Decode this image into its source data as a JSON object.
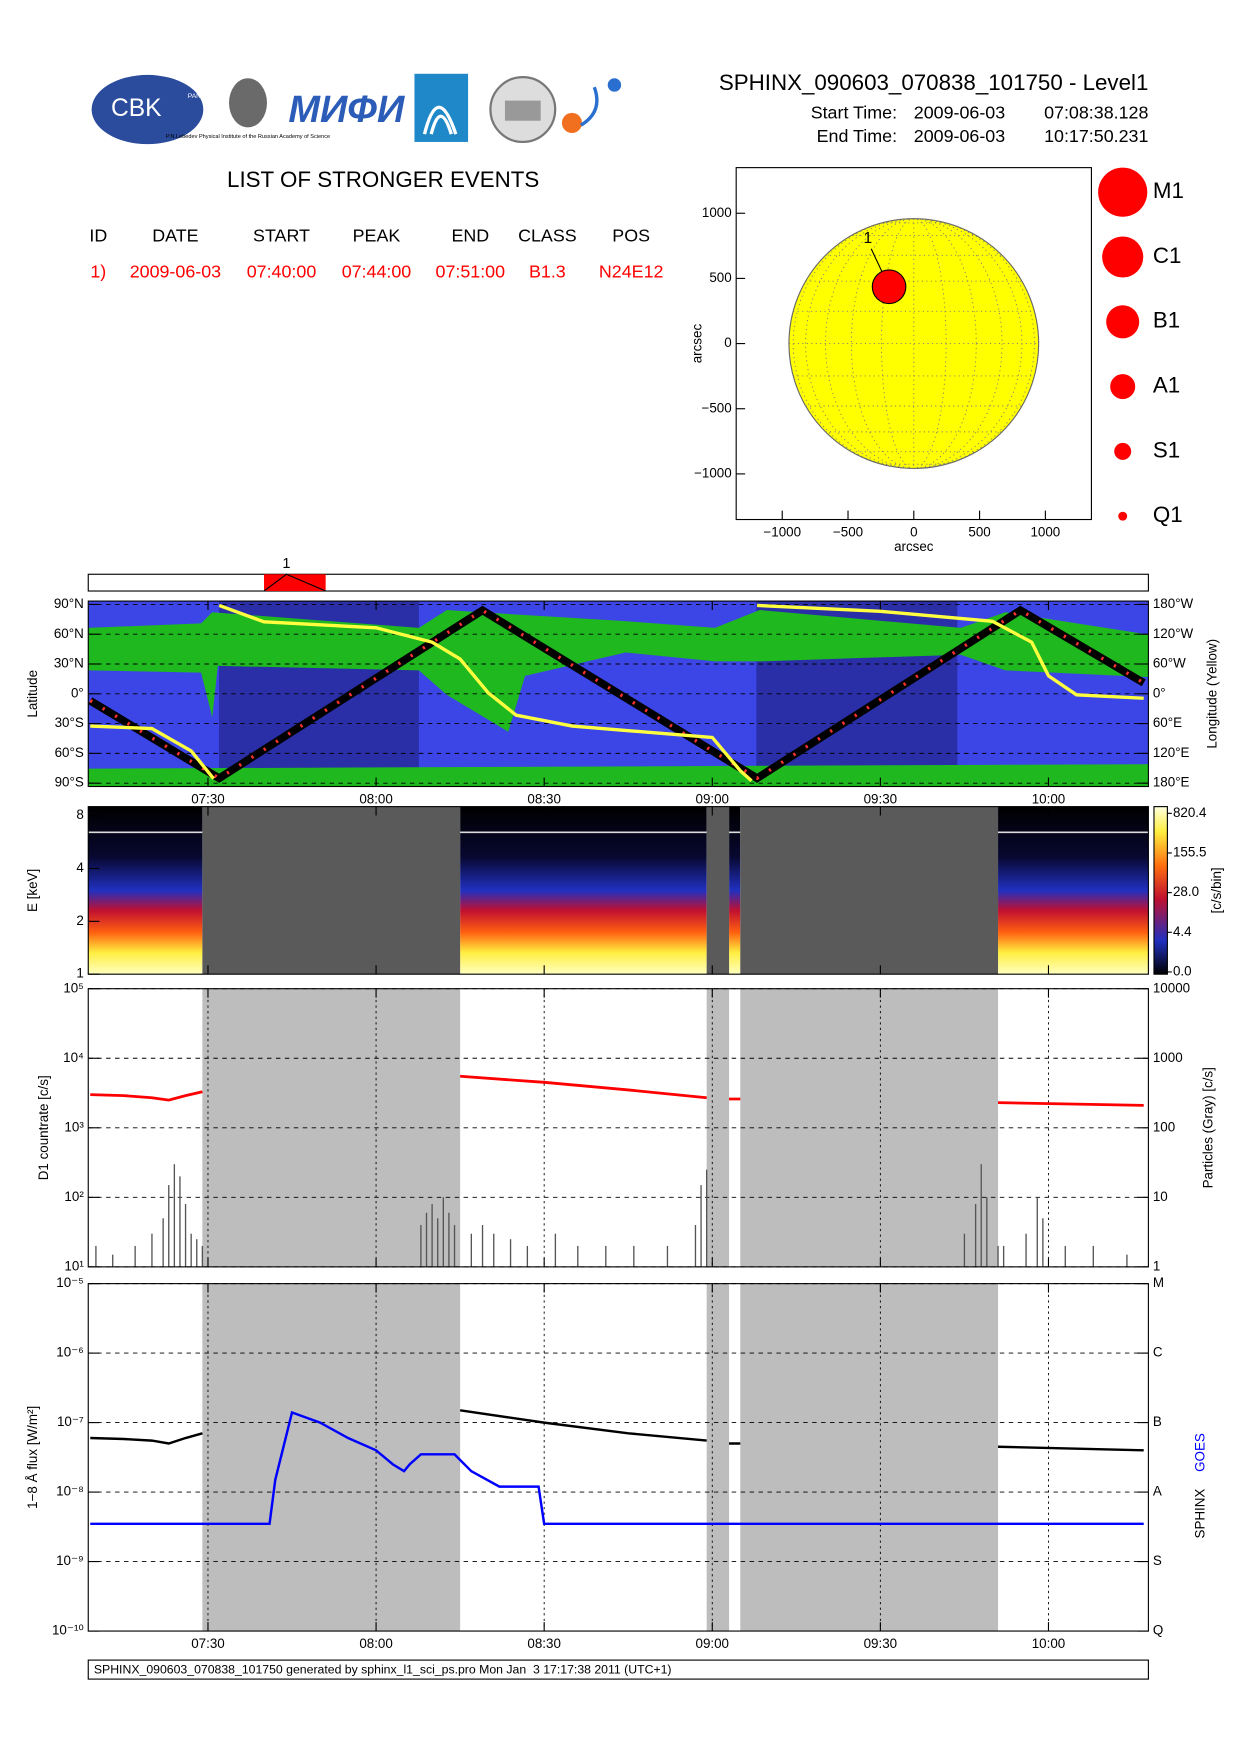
{
  "header": {
    "title": "SPHINX_090603_070838_101750 - Level1",
    "start_label": "Start Time:",
    "start_date": "2009-06-03",
    "start_time": "07:08:38.128",
    "end_label": "End Time:",
    "end_date": "2009-06-03",
    "end_time": "10:17:50.231",
    "logo_cbk": "CBK",
    "logo_pan": "PAN",
    "logo_lebedev": "P.N.Lebedev Physical Institute of the Russian Academy of Science",
    "logo_mifi": "МИФИ"
  },
  "events": {
    "title": "LIST OF STRONGER EVENTS",
    "columns": [
      "ID",
      "DATE",
      "START",
      "PEAK",
      "END",
      "CLASS",
      "POS"
    ],
    "rows": [
      [
        "1)",
        "2009-06-03",
        "07:40:00",
        "07:44:00",
        "07:51:00",
        "B1.3",
        "N24E12"
      ]
    ]
  },
  "footer": "SPHINX_090603_070838_101750 generated by sphinx_l1_sci_ps.pro Mon Jan  3 17:17:38 2011 (UTC+1)",
  "chart_data": [
    {
      "type": "scatter",
      "xlabel": "arcsec",
      "ylabel": "arcsec",
      "xlim": [
        -1350,
        1350
      ],
      "ylim": [
        -1350,
        1350
      ],
      "xticks": [
        {
          "value": -1000,
          "label": "−1000"
        },
        {
          "value": -500,
          "label": "−500"
        },
        0,
        500,
        1000
      ],
      "yticks": [
        {
          "value": -1000,
          "label": "−1000"
        },
        {
          "value": -500,
          "label": "−500"
        },
        0,
        500,
        1000
      ],
      "sun_radius": 949,
      "disk_color": "#ffff00",
      "x": [
        -188
      ],
      "values": [
        436
      ],
      "labels": [
        "1"
      ],
      "color": "#ff0000",
      "classes": [
        "M1",
        "C1",
        "B1",
        "A1",
        "S1",
        "Q1"
      ]
    },
    {
      "type": "timeline",
      "xlim": [
        "07:08:38",
        "10:17:50"
      ],
      "labels": [
        "1"
      ],
      "color": "#ff0000"
    },
    {
      "type": "orbit",
      "ylabel": "Latitude",
      "y2label": "Longitude (Yellow)",
      "xlim": [
        "07:08:38",
        "10:17:50"
      ],
      "xticks": [
        "07:30",
        "08:00",
        "08:30",
        "09:00",
        "09:30",
        "10:00"
      ],
      "xtick_labels": true,
      "xgrid": false,
      "grid": true,
      "ylim": [
        -90,
        90
      ],
      "yticks": [
        {
          "value": 90,
          "label": "90°N"
        },
        {
          "value": 60,
          "label": "60°N"
        },
        {
          "value": 30,
          "label": "30°N"
        },
        {
          "value": 0,
          "label": "0°"
        },
        {
          "value": -30,
          "label": "30°S"
        },
        {
          "value": -60,
          "label": "60°S"
        },
        {
          "value": -90,
          "label": "90°S"
        }
      ],
      "y2lim": [
        -180,
        180
      ],
      "y2ticks": [
        {
          "value": 180,
          "label": "180°W"
        },
        {
          "value": 120,
          "label": "120°W"
        },
        {
          "value": 60,
          "label": "60°W"
        },
        {
          "value": 0,
          "label": "0°"
        },
        {
          "value": -60,
          "label": "60°E"
        },
        {
          "value": -120,
          "label": "120°E"
        },
        {
          "value": -180,
          "label": "180°E"
        }
      ],
      "series": [
        {
          "color": "#000000",
          "x": [
            "07:09",
            "07:32",
            "08:19",
            "09:08",
            "09:55",
            "10:17"
          ],
          "values": [
            -7,
            -85,
            84,
            -85,
            84,
            11
          ]
        },
        {
          "color": "#ffff40",
          "axis": "y2",
          "x": [
            "07:09",
            "07:20",
            "07:27",
            "07:31",
            "07:31",
            "07:32",
            "07:40",
            "08:00",
            "08:10",
            "08:15",
            "08:20",
            "08:25",
            "08:35",
            "09:00",
            "09:05",
            "09:07",
            "09:07",
            "09:08",
            "09:30",
            "09:50",
            "09:57",
            "10:00",
            "10:05",
            "10:17"
          ],
          "values": [
            -65,
            -70,
            -115,
            -171,
            null,
            178,
            145,
            133,
            104,
            70,
            2,
            -43,
            -65,
            -88,
            -155,
            -175,
            null,
            178,
            166,
            146,
            104,
            36,
            -2,
            -9
          ]
        }
      ]
    },
    {
      "type": "spectrogram",
      "ylabel": "E [keV]",
      "cblabel": "[c/s/bin]",
      "log": true,
      "xlim": [
        "07:08:38",
        "10:17:50"
      ],
      "xticks": [
        "07:30",
        "08:00",
        "08:30",
        "09:00",
        "09:30",
        "10:00"
      ],
      "xtick_labels": false,
      "xgrid": false,
      "ylim": [
        1,
        9
      ],
      "yticks": [
        1,
        2,
        4,
        8
      ],
      "cbticks": [
        {
          "value": 0,
          "label": "0.0"
        },
        {
          "value": 4.4,
          "label": "4.4"
        },
        {
          "value": 28,
          "label": "28.0"
        },
        {
          "value": 155.5,
          "label": "155.5"
        },
        {
          "value": 820.4,
          "label": "820.4"
        }
      ],
      "gaps": [
        [
          "07:29",
          "08:15"
        ],
        [
          "08:59",
          "09:03"
        ],
        [
          "09:05",
          "09:51"
        ]
      ]
    },
    {
      "type": "countrate",
      "ylabel": "D1 countrate [c/s]",
      "y2label": "Particles (Gray) [c/s]",
      "log": true,
      "grid": true,
      "xlim": [
        "07:08:38",
        "10:17:50"
      ],
      "xticks": [
        "07:30",
        "08:00",
        "08:30",
        "09:00",
        "09:30",
        "10:00"
      ],
      "xtick_labels": false,
      "xgrid": true,
      "ylim": [
        10,
        100000
      ],
      "yticks": [
        {
          "value": 10,
          "label": "10¹"
        },
        {
          "value": 100,
          "label": "10²"
        },
        {
          "value": 1000,
          "label": "10³"
        },
        {
          "value": 10000,
          "label": "10⁴"
        },
        {
          "value": 100000,
          "label": "10⁵"
        }
      ],
      "y2lim": [
        1,
        10000
      ],
      "y2ticks": [
        1,
        10,
        100,
        1000,
        10000
      ],
      "series": [
        {
          "color": "#ff0000",
          "x": [
            "07:09",
            "07:15",
            "07:20",
            "07:23",
            "07:26",
            "07:29",
            "07:30",
            "08:15",
            "08:30",
            "08:45",
            "08:59",
            "09:01",
            "09:03",
            "09:05",
            "09:06",
            "09:51",
            "10:17"
          ],
          "values": [
            3000,
            2900,
            2700,
            2500,
            2900,
            3300,
            null,
            5500,
            4500,
            3500,
            2700,
            null,
            2600,
            2600,
            null,
            2300,
            2100
          ]
        },
        {
          "color": "#555555",
          "axis": "y2",
          "x": [
            "07:10",
            "07:13",
            "07:17",
            "07:20",
            "07:22",
            "07:23",
            "07:24",
            "07:25",
            "07:26",
            "07:27",
            "07:28",
            "07:29",
            "08:08",
            "08:09",
            "08:10",
            "08:11",
            "08:12",
            "08:13",
            "08:14",
            "08:17",
            "08:19",
            "08:21",
            "08:24",
            "08:27",
            "08:32",
            "08:36",
            "08:41",
            "08:46",
            "08:52",
            "08:57",
            "08:58",
            "08:59",
            "09:45",
            "09:47",
            "09:48",
            "09:49",
            "09:51",
            "09:52",
            "09:56",
            "09:58",
            "09:59",
            "10:03",
            "10:08",
            "10:14"
          ],
          "values": [
            2,
            1.5,
            2,
            3,
            5,
            15,
            30,
            20,
            8,
            3,
            2.5,
            2,
            4,
            6,
            8,
            5,
            10,
            6,
            4,
            3,
            4,
            3,
            2.5,
            2,
            3,
            2,
            2,
            2,
            2,
            4,
            15,
            25,
            3,
            8,
            30,
            10,
            2,
            2,
            3,
            10,
            5,
            2,
            2,
            1.5
          ]
        }
      ]
    },
    {
      "type": "flux",
      "ylabel": "1−8 Å flux [W/m²]",
      "log": true,
      "grid": true,
      "xlim": [
        "07:08:38",
        "10:17:50"
      ],
      "xticks": [
        "07:30",
        "08:00",
        "08:30",
        "09:00",
        "09:30",
        "10:00"
      ],
      "xtick_labels": true,
      "xgrid": true,
      "ylim": [
        1e-10,
        1e-05
      ],
      "yticks": [
        {
          "value": 1e-10,
          "label": "10⁻¹⁰"
        },
        {
          "value": 1e-09,
          "label": "10⁻⁹"
        },
        {
          "value": 1e-08,
          "label": "10⁻⁸"
        },
        {
          "value": 1e-07,
          "label": "10⁻⁷"
        },
        {
          "value": 1e-06,
          "label": "10⁻⁶"
        },
        {
          "value": 1e-05,
          "label": "10⁻⁵"
        }
      ],
      "y2lim": [
        1e-10,
        1e-05
      ],
      "y2ticks": [
        {
          "value": 1e-10,
          "label": "Q"
        },
        {
          "value": 1e-09,
          "label": "S"
        },
        {
          "value": 1e-08,
          "label": "A"
        },
        {
          "value": 1e-07,
          "label": "B"
        },
        {
          "value": 1e-06,
          "label": "C"
        },
        {
          "value": 1e-05,
          "label": "M"
        }
      ],
      "series": [
        {
          "name": "SPHINX",
          "color": "#000000",
          "x": [
            "07:09",
            "07:15",
            "07:20",
            "07:23",
            "07:26",
            "07:29",
            "07:30",
            "08:15",
            "08:30",
            "08:45",
            "08:59",
            "09:01",
            "09:03",
            "09:05",
            "09:06",
            "09:51",
            "10:17"
          ],
          "values": [
            6e-08,
            5.8e-08,
            5.5e-08,
            5e-08,
            6e-08,
            7e-08,
            null,
            1.5e-07,
            1e-07,
            7e-08,
            5.5e-08,
            null,
            5e-08,
            5e-08,
            null,
            4.5e-08,
            4e-08
          ]
        },
        {
          "name": "GOES",
          "color": "#0000ff",
          "x": [
            "07:09",
            "07:41",
            "07:42",
            "07:45",
            "07:50",
            "07:55",
            "08:00",
            "08:03",
            "08:05",
            "08:06",
            "08:08",
            "08:14",
            "08:17",
            "08:22",
            "08:29",
            "08:30",
            "10:17"
          ],
          "values": [
            3.5e-09,
            3.5e-09,
            1.5e-08,
            1.4e-07,
            1e-07,
            6e-08,
            4e-08,
            2.5e-08,
            2e-08,
            2.5e-08,
            3.5e-08,
            3.5e-08,
            2e-08,
            1.2e-08,
            1.2e-08,
            3.5e-09,
            3.5e-09
          ]
        }
      ]
    }
  ]
}
